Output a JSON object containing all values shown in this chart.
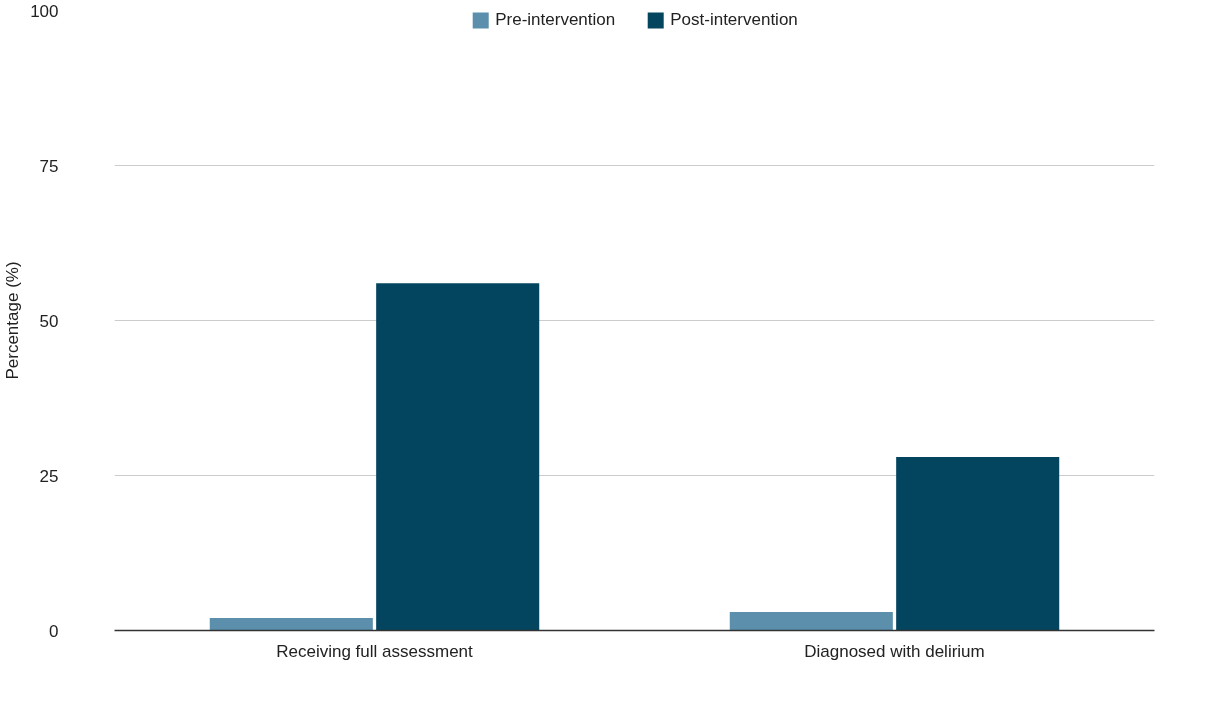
{
  "chart_data": {
    "type": "bar",
    "ylabel": "Percentage (%)",
    "categories": [
      "Receiving full assessment",
      "Diagnosed with delirium"
    ],
    "series": [
      {
        "name": "Pre-intervention",
        "color": "#5b8fac",
        "values": [
          2,
          3
        ]
      },
      {
        "name": "Post-intervention",
        "color": "#03445e",
        "values": [
          56,
          28
        ]
      }
    ],
    "ylim": [
      0,
      100
    ],
    "yticks": [
      0,
      25,
      50,
      75,
      100
    ],
    "grid": "y",
    "legend": "top"
  }
}
